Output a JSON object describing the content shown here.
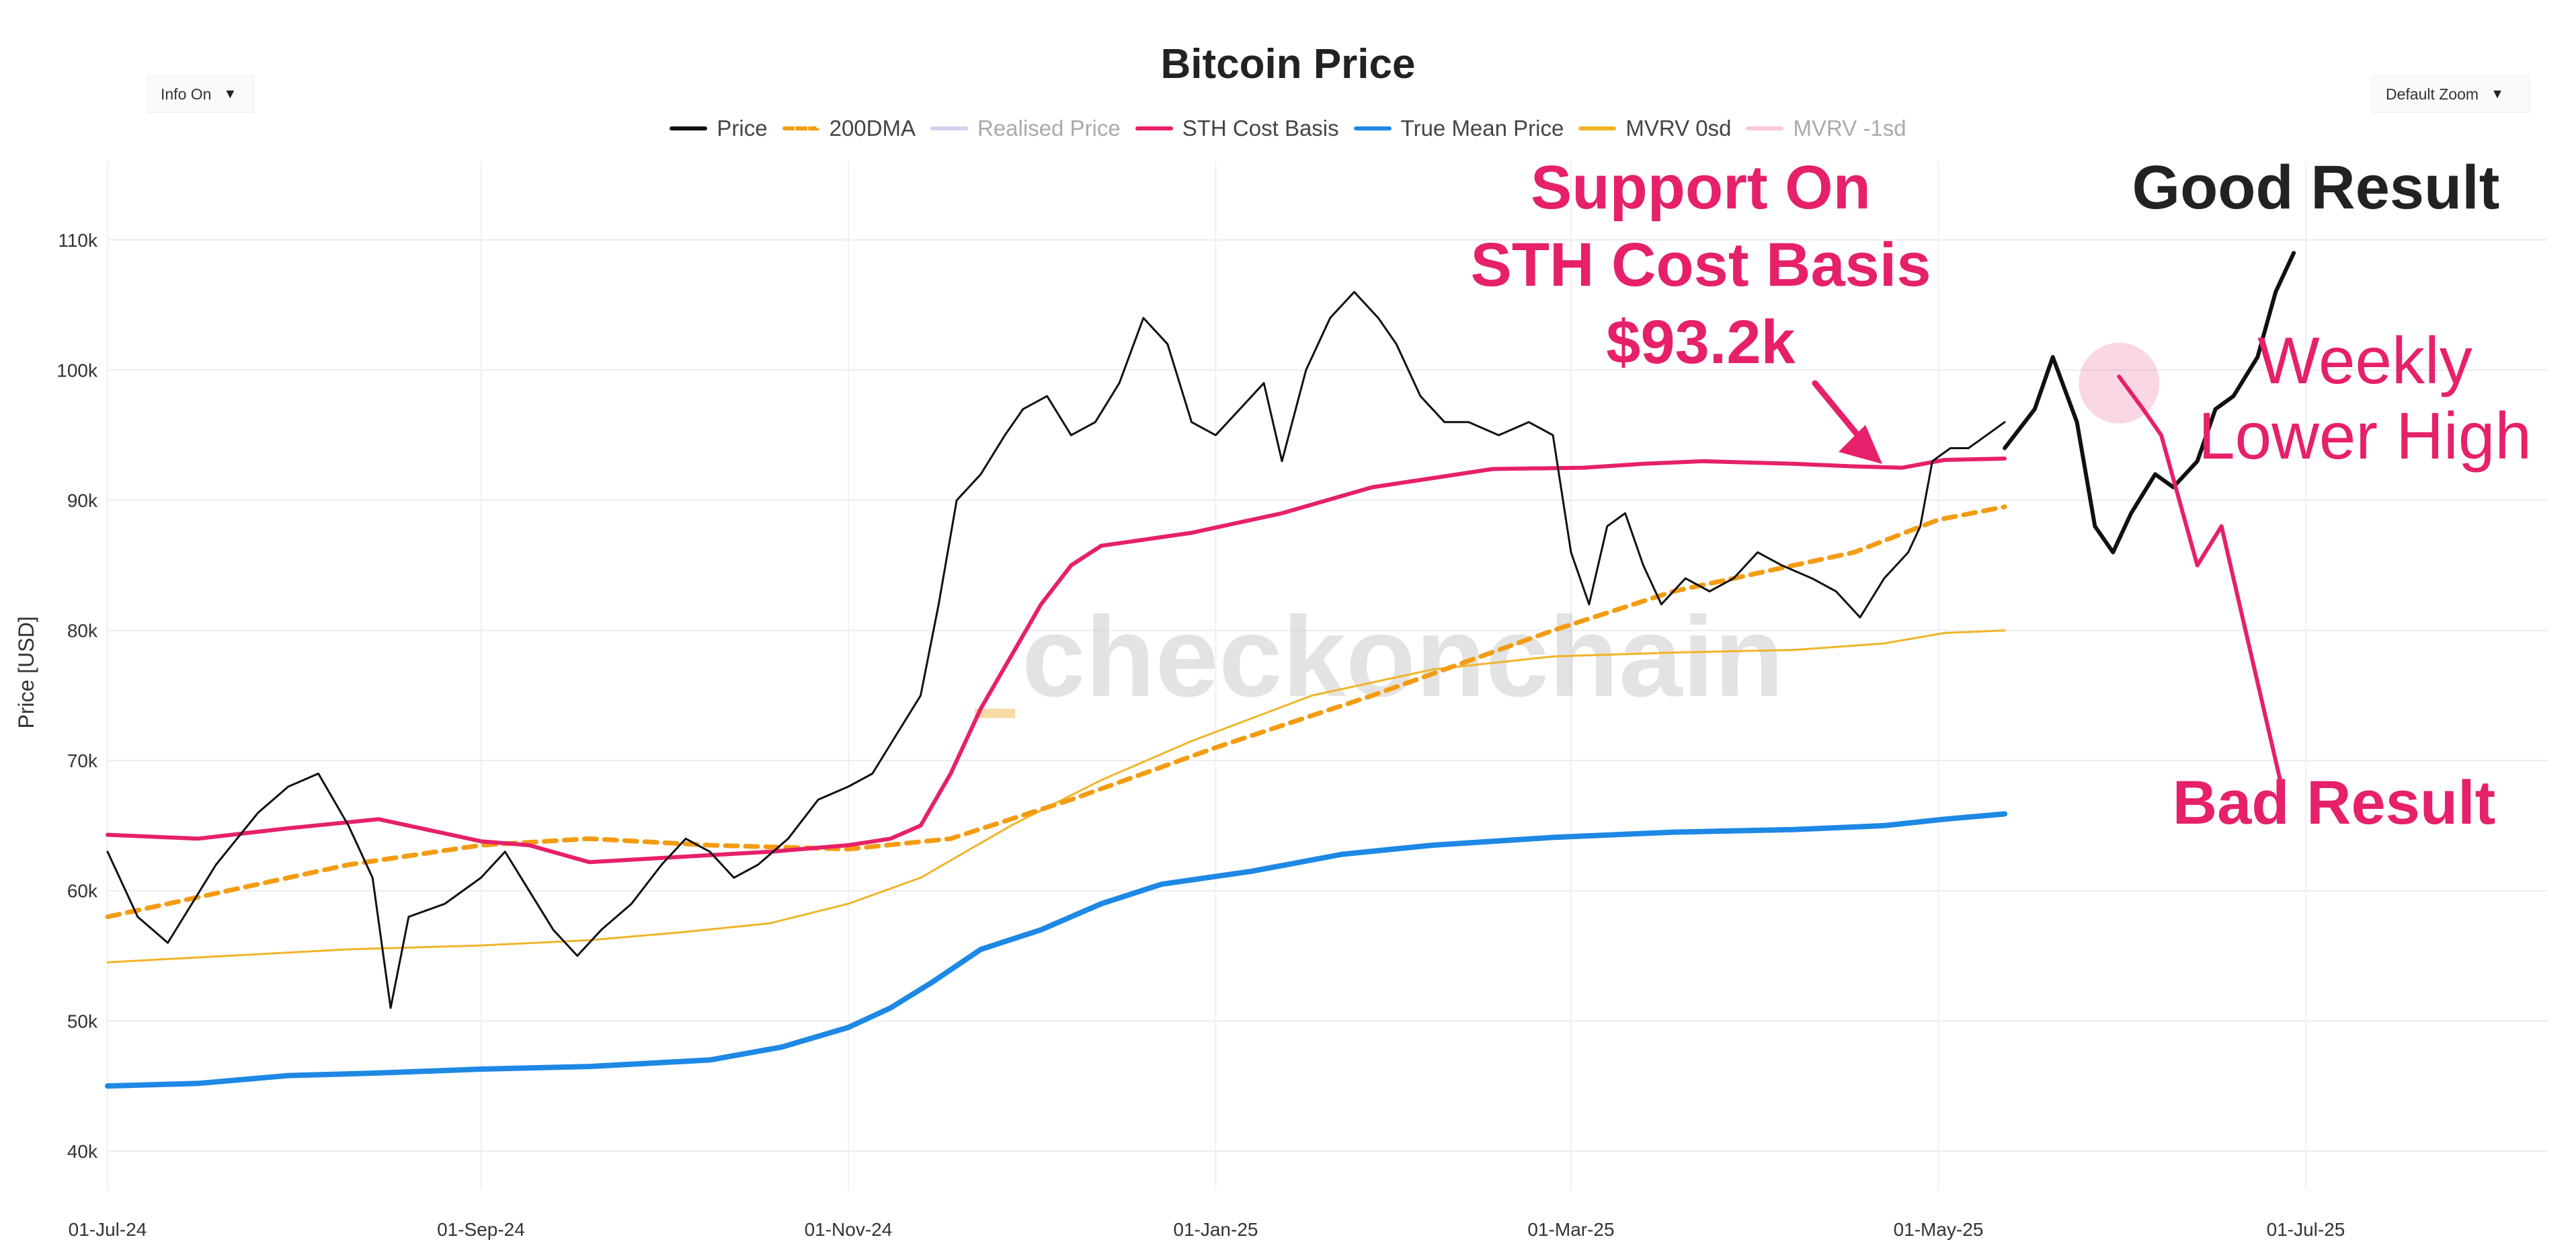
{
  "chart_data": {
    "type": "line",
    "title": "Bitcoin Price",
    "xlabel": "",
    "ylabel": "Price [USD]",
    "ylim": [
      37000,
      115000
    ],
    "yticks": [
      {
        "value": 40000,
        "label": "40k"
      },
      {
        "value": 50000,
        "label": "50k"
      },
      {
        "value": 60000,
        "label": "60k"
      },
      {
        "value": 70000,
        "label": "70k"
      },
      {
        "value": 80000,
        "label": "80k"
      },
      {
        "value": 90000,
        "label": "90k"
      },
      {
        "value": 100000,
        "label": "100k"
      },
      {
        "value": 110000,
        "label": "110k"
      }
    ],
    "xticks": [
      {
        "day": 0,
        "label": "01-Jul-24"
      },
      {
        "day": 62,
        "label": "01-Sep-24"
      },
      {
        "day": 123,
        "label": "01-Nov-24"
      },
      {
        "day": 184,
        "label": "01-Jan-25"
      },
      {
        "day": 243,
        "label": "01-Mar-25"
      },
      {
        "day": 304,
        "label": "01-May-25"
      },
      {
        "day": 365,
        "label": "01-Jul-25"
      }
    ],
    "xrange_days": [
      0,
      406
    ],
    "series": [
      {
        "name": "Price",
        "color": "#111111",
        "points": [
          [
            0,
            63000
          ],
          [
            5,
            58000
          ],
          [
            10,
            56000
          ],
          [
            18,
            62000
          ],
          [
            25,
            66000
          ],
          [
            30,
            68000
          ],
          [
            35,
            69000
          ],
          [
            40,
            65000
          ],
          [
            44,
            61000
          ],
          [
            47,
            51000
          ],
          [
            50,
            58000
          ],
          [
            56,
            59000
          ],
          [
            62,
            61000
          ],
          [
            66,
            63000
          ],
          [
            70,
            60000
          ],
          [
            74,
            57000
          ],
          [
            78,
            55000
          ],
          [
            82,
            57000
          ],
          [
            87,
            59000
          ],
          [
            92,
            62000
          ],
          [
            96,
            64000
          ],
          [
            100,
            63000
          ],
          [
            104,
            61000
          ],
          [
            108,
            62000
          ],
          [
            113,
            64000
          ],
          [
            118,
            67000
          ],
          [
            123,
            68000
          ],
          [
            127,
            69000
          ],
          [
            131,
            72000
          ],
          [
            135,
            75000
          ],
          [
            138,
            82000
          ],
          [
            141,
            90000
          ],
          [
            145,
            92000
          ],
          [
            149,
            95000
          ],
          [
            152,
            97000
          ],
          [
            156,
            98000
          ],
          [
            160,
            95000
          ],
          [
            164,
            96000
          ],
          [
            168,
            99000
          ],
          [
            172,
            104000
          ],
          [
            176,
            102000
          ],
          [
            180,
            96000
          ],
          [
            184,
            95000
          ],
          [
            188,
            97000
          ],
          [
            192,
            99000
          ],
          [
            195,
            93000
          ],
          [
            199,
            100000
          ],
          [
            203,
            104000
          ],
          [
            207,
            106000
          ],
          [
            211,
            104000
          ],
          [
            214,
            102000
          ],
          [
            218,
            98000
          ],
          [
            222,
            96000
          ],
          [
            226,
            96000
          ],
          [
            231,
            95000
          ],
          [
            236,
            96000
          ],
          [
            240,
            95000
          ],
          [
            243,
            86000
          ],
          [
            246,
            82000
          ],
          [
            249,
            88000
          ],
          [
            252,
            89000
          ],
          [
            255,
            85000
          ],
          [
            258,
            82000
          ],
          [
            262,
            84000
          ],
          [
            266,
            83000
          ],
          [
            270,
            84000
          ],
          [
            274,
            86000
          ],
          [
            278,
            85000
          ],
          [
            283,
            84000
          ],
          [
            287,
            83000
          ],
          [
            291,
            81000
          ],
          [
            295,
            84000
          ],
          [
            299,
            86000
          ],
          [
            301,
            88000
          ],
          [
            303,
            93000
          ],
          [
            306,
            94000
          ],
          [
            309,
            94000
          ],
          [
            312,
            95000
          ],
          [
            315,
            96000
          ]
        ]
      },
      {
        "name": "200DMA",
        "color": "#f39c12",
        "dashed": true,
        "points": [
          [
            0,
            58000
          ],
          [
            20,
            60000
          ],
          [
            40,
            62000
          ],
          [
            62,
            63500
          ],
          [
            80,
            64000
          ],
          [
            100,
            63500
          ],
          [
            123,
            63200
          ],
          [
            140,
            64000
          ],
          [
            160,
            67000
          ],
          [
            184,
            71000
          ],
          [
            210,
            75000
          ],
          [
            240,
            80000
          ],
          [
            260,
            83000
          ],
          [
            290,
            86000
          ],
          [
            304,
            88500
          ],
          [
            315,
            89500
          ]
        ]
      },
      {
        "name": "Realised Price",
        "color": "#b39ddb",
        "hidden": true,
        "points": []
      },
      {
        "name": "STH Cost Basis",
        "color": "#e6206a",
        "points": [
          [
            0,
            64300
          ],
          [
            15,
            64000
          ],
          [
            30,
            64800
          ],
          [
            45,
            65500
          ],
          [
            55,
            64500
          ],
          [
            62,
            63800
          ],
          [
            70,
            63500
          ],
          [
            80,
            62200
          ],
          [
            95,
            62600
          ],
          [
            110,
            63000
          ],
          [
            123,
            63500
          ],
          [
            130,
            64000
          ],
          [
            135,
            65000
          ],
          [
            140,
            69000
          ],
          [
            145,
            74000
          ],
          [
            150,
            78000
          ],
          [
            155,
            82000
          ],
          [
            160,
            85000
          ],
          [
            165,
            86500
          ],
          [
            180,
            87500
          ],
          [
            195,
            89000
          ],
          [
            210,
            91000
          ],
          [
            230,
            92400
          ],
          [
            245,
            92500
          ],
          [
            255,
            92800
          ],
          [
            265,
            93000
          ],
          [
            280,
            92800
          ],
          [
            290,
            92600
          ],
          [
            298,
            92500
          ],
          [
            305,
            93100
          ],
          [
            315,
            93200
          ]
        ]
      },
      {
        "name": "True Mean Price",
        "color": "#1e88e5",
        "points": [
          [
            0,
            45000
          ],
          [
            15,
            45200
          ],
          [
            30,
            45800
          ],
          [
            45,
            46000
          ],
          [
            62,
            46300
          ],
          [
            80,
            46500
          ],
          [
            100,
            47000
          ],
          [
            112,
            48000
          ],
          [
            123,
            49500
          ],
          [
            130,
            51000
          ],
          [
            137,
            53000
          ],
          [
            145,
            55500
          ],
          [
            155,
            57000
          ],
          [
            165,
            59000
          ],
          [
            175,
            60500
          ],
          [
            190,
            61500
          ],
          [
            205,
            62800
          ],
          [
            220,
            63500
          ],
          [
            240,
            64100
          ],
          [
            260,
            64500
          ],
          [
            280,
            64700
          ],
          [
            295,
            65000
          ],
          [
            305,
            65500
          ],
          [
            315,
            65900
          ]
        ]
      },
      {
        "name": "MVRV 0sd",
        "color": "#f0b429",
        "points": [
          [
            0,
            54500
          ],
          [
            20,
            55000
          ],
          [
            40,
            55500
          ],
          [
            62,
            55800
          ],
          [
            80,
            56200
          ],
          [
            95,
            56800
          ],
          [
            110,
            57500
          ],
          [
            123,
            59000
          ],
          [
            135,
            61000
          ],
          [
            150,
            65000
          ],
          [
            165,
            68500
          ],
          [
            180,
            71500
          ],
          [
            200,
            75000
          ],
          [
            220,
            77000
          ],
          [
            240,
            78000
          ],
          [
            260,
            78300
          ],
          [
            280,
            78500
          ],
          [
            295,
            79000
          ],
          [
            305,
            79800
          ],
          [
            315,
            80000
          ]
        ]
      },
      {
        "name": "MVRV -1sd",
        "color": "#f48fb1",
        "hidden": true,
        "points": []
      }
    ],
    "annotations": {
      "support_text": [
        "Support On",
        "STH Cost Basis",
        "$93.2k"
      ],
      "good_result": "Good Result",
      "weekly_text": [
        "Weekly",
        "Lower High"
      ],
      "bad_result": "Bad Result",
      "good_path": [
        [
          315,
          94000
        ],
        [
          320,
          97000
        ],
        [
          323,
          101000
        ],
        [
          327,
          96000
        ],
        [
          330,
          88000
        ],
        [
          333,
          86000
        ],
        [
          336,
          89000
        ],
        [
          340,
          92000
        ],
        [
          343,
          91000
        ],
        [
          347,
          93000
        ],
        [
          350,
          97000
        ],
        [
          353,
          98000
        ],
        [
          357,
          101000
        ],
        [
          360,
          106000
        ],
        [
          363,
          109000
        ]
      ],
      "bad_path": [
        [
          334,
          99500
        ],
        [
          338,
          97000
        ],
        [
          341,
          95000
        ],
        [
          344,
          90000
        ],
        [
          347,
          85000
        ],
        [
          351,
          88000
        ],
        [
          355,
          80000
        ],
        [
          358,
          74000
        ],
        [
          361,
          68000
        ]
      ]
    },
    "watermark": "checkonchain"
  },
  "controls": {
    "info_label": "Info On",
    "zoom_label": "Default Zoom",
    "arrow": "▼"
  },
  "legend": [
    {
      "label": "Price",
      "color": "#111111",
      "style": "solid",
      "active": true
    },
    {
      "label": "200DMA",
      "color": "#f39c12",
      "style": "dash",
      "active": true
    },
    {
      "label": "Realised Price",
      "color": "#b39ddb",
      "style": "solid",
      "active": false
    },
    {
      "label": "STH Cost Basis",
      "color": "#e6206a",
      "style": "solid",
      "active": true
    },
    {
      "label": "True Mean Price",
      "color": "#1e88e5",
      "style": "solid",
      "active": true
    },
    {
      "label": "MVRV 0sd",
      "color": "#f0b429",
      "style": "solid",
      "active": true
    },
    {
      "label": "MVRV -1sd",
      "color": "#f48fb1",
      "style": "solid",
      "active": false
    }
  ]
}
